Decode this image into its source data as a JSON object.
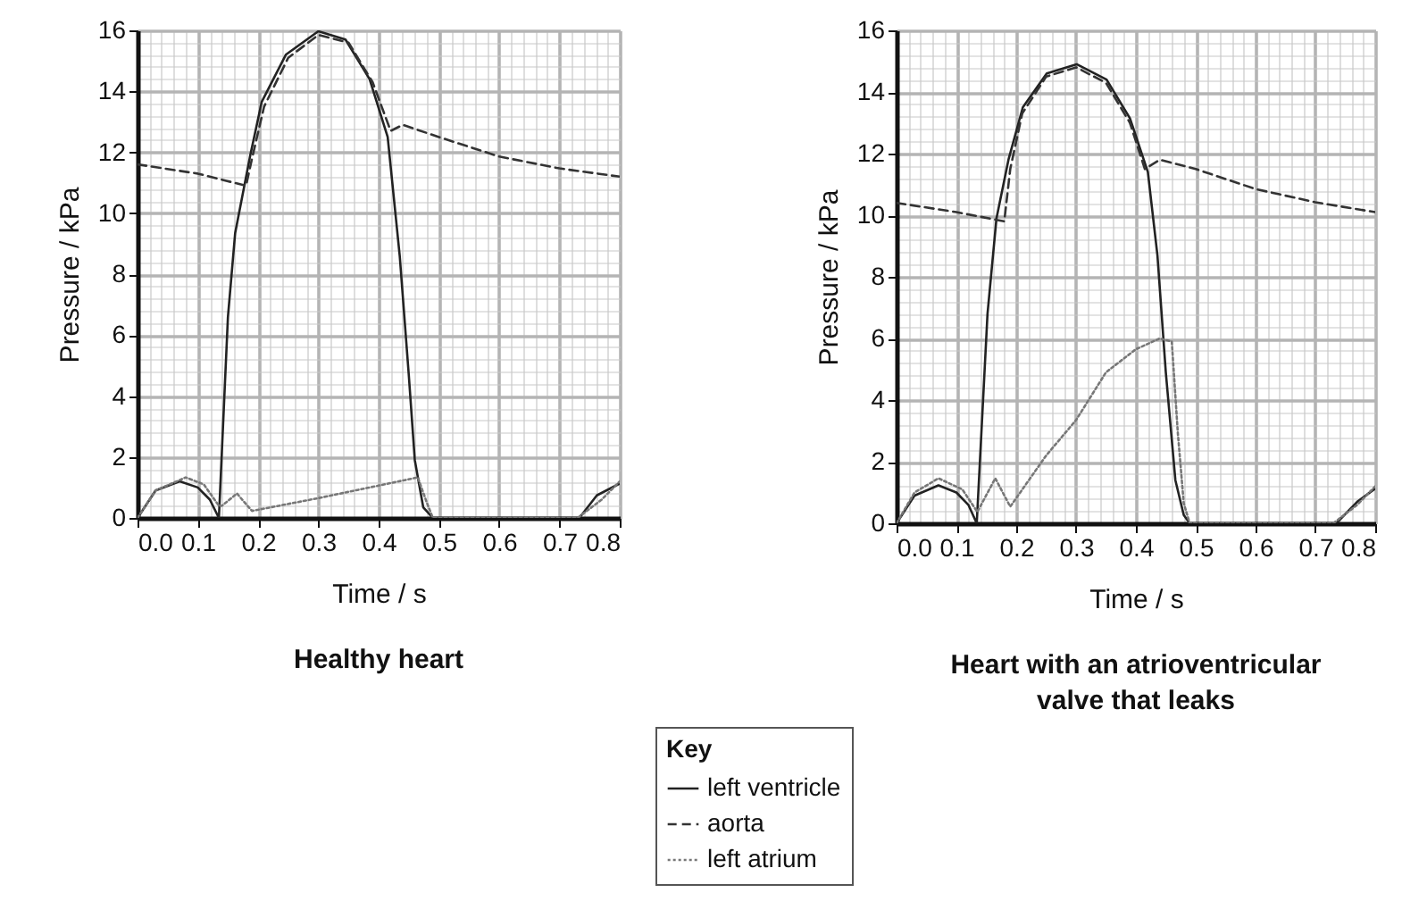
{
  "chart_data": [
    {
      "type": "line",
      "title": "Healthy heart",
      "xlabel": "Time / s",
      "ylabel": "Pressure / kPa",
      "legend_title": "Key",
      "legend": "bottom",
      "grid": true,
      "xlim": [
        0,
        0.8
      ],
      "xticks": [
        {
          "value": 0,
          "label": "0.0"
        },
        {
          "value": 0.1,
          "label": "0.1"
        },
        {
          "value": 0.2,
          "label": "0.2"
        },
        {
          "value": 0.3,
          "label": "0.3"
        },
        {
          "value": 0.4,
          "label": "0.4"
        },
        {
          "value": 0.5,
          "label": "0.5"
        },
        {
          "value": 0.6,
          "label": "0.6"
        },
        {
          "value": 0.7,
          "label": "0.7"
        },
        {
          "value": 0.8,
          "label": "0.8"
        }
      ],
      "ylim": [
        0,
        16
      ],
      "yticks": [
        0,
        2,
        4,
        6,
        8,
        10,
        12,
        14,
        16
      ],
      "series": [
        {
          "name": "left ventricle",
          "color": "#222222",
          "line_style": "solid",
          "x": [
            0,
            0.03,
            0.07,
            0.1,
            0.12,
            0.135,
            0.15,
            0.162,
            0.187,
            0.206,
            0.246,
            0.3,
            0.345,
            0.385,
            0.415,
            0.435,
            0.45,
            0.46,
            0.474,
            0.49,
            0.6,
            0.733,
            0.762,
            0.8
          ],
          "values": [
            0,
            0.9,
            1.2,
            1.0,
            0.6,
            0,
            6.6,
            9.35,
            11.9,
            13.65,
            15.2,
            15.97,
            15.7,
            14.4,
            12.5,
            8.6,
            4.7,
            1.9,
            0.35,
            0,
            0,
            0,
            0.74,
            1.13
          ]
        },
        {
          "name": "aorta",
          "color": "#333333",
          "line_style": "dashed",
          "x": [
            0,
            0.1,
            0.18,
            0.19,
            0.21,
            0.25,
            0.3,
            0.35,
            0.39,
            0.42,
            0.44,
            0.5,
            0.6,
            0.7,
            0.8
          ],
          "values": [
            11.6,
            11.3,
            10.9,
            11.8,
            13.5,
            15.1,
            15.85,
            15.6,
            14.3,
            12.7,
            12.9,
            12.5,
            11.86,
            11.47,
            11.2
          ]
        },
        {
          "name": "left atrium",
          "color": "#777777",
          "line_style": "dotted",
          "x": [
            0,
            0.03,
            0.08,
            0.11,
            0.135,
            0.14,
            0.165,
            0.19,
            0.3,
            0.465,
            0.48,
            0.49,
            0.6,
            0.73,
            0.77,
            0.8
          ],
          "values": [
            0,
            0.9,
            1.33,
            1.1,
            0.4,
            0.4,
            0.8,
            0.23,
            0.65,
            1.33,
            0.5,
            0,
            0,
            0,
            0.6,
            1.2
          ]
        }
      ]
    },
    {
      "type": "line",
      "title": "Heart with an atrioventricular valve that leaks",
      "xlabel": "Time / s",
      "ylabel": "Pressure / kPa",
      "grid": true,
      "xlim": [
        0,
        0.8
      ],
      "xticks": [
        {
          "value": 0,
          "label": "0.0"
        },
        {
          "value": 0.1,
          "label": "0.1"
        },
        {
          "value": 0.2,
          "label": "0.2"
        },
        {
          "value": 0.3,
          "label": "0.3"
        },
        {
          "value": 0.4,
          "label": "0.4"
        },
        {
          "value": 0.5,
          "label": "0.5"
        },
        {
          "value": 0.6,
          "label": "0.6"
        },
        {
          "value": 0.7,
          "label": "0.7"
        },
        {
          "value": 0.8,
          "label": "0.8"
        }
      ],
      "ylim": [
        0,
        16
      ],
      "yticks": [
        0,
        2,
        4,
        6,
        8,
        10,
        12,
        14,
        16
      ],
      "series": [
        {
          "color": "#222222",
          "line_style": "solid",
          "x": [
            0,
            0.03,
            0.07,
            0.1,
            0.12,
            0.134,
            0.152,
            0.167,
            0.187,
            0.211,
            0.251,
            0.301,
            0.351,
            0.39,
            0.42,
            0.436,
            0.45,
            0.466,
            0.48,
            0.49,
            0.6,
            0.735,
            0.77,
            0.8
          ],
          "values": [
            0,
            0.9,
            1.23,
            1.0,
            0.6,
            0,
            6.8,
            9.9,
            11.8,
            13.5,
            14.6,
            14.9,
            14.4,
            13.15,
            11.4,
            8.7,
            4.9,
            1.4,
            0.27,
            0,
            0,
            0,
            0.7,
            1.13
          ]
        },
        {
          "color": "#333333",
          "line_style": "dashed",
          "x": [
            0,
            0.1,
            0.18,
            0.19,
            0.21,
            0.25,
            0.3,
            0.35,
            0.39,
            0.415,
            0.44,
            0.5,
            0.6,
            0.7,
            0.8
          ],
          "values": [
            10.4,
            10.1,
            9.8,
            11.5,
            13.3,
            14.5,
            14.8,
            14.3,
            13.0,
            11.5,
            11.8,
            11.5,
            10.85,
            10.42,
            10.1
          ]
        },
        {
          "color": "#777777",
          "line_style": "dotted",
          "x": [
            0,
            0.03,
            0.07,
            0.11,
            0.135,
            0.165,
            0.19,
            0.25,
            0.3,
            0.35,
            0.4,
            0.44,
            0.46,
            0.47,
            0.48,
            0.49,
            0.6,
            0.73,
            0.77,
            0.8
          ],
          "values": [
            0,
            1.0,
            1.46,
            1.1,
            0.37,
            1.46,
            0.54,
            2.2,
            3.35,
            4.9,
            5.65,
            6.0,
            5.9,
            2.96,
            0.65,
            0,
            0,
            0,
            0.6,
            1.2
          ]
        }
      ]
    }
  ]
}
